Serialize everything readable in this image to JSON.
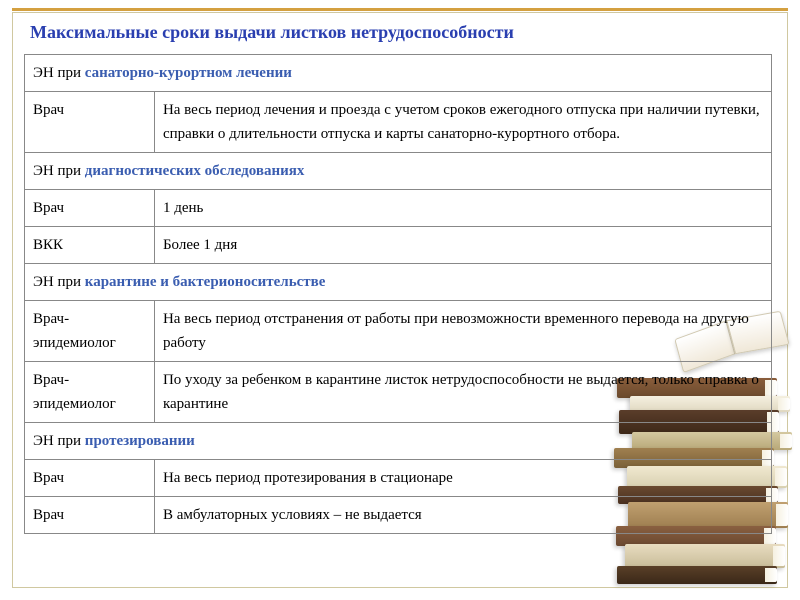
{
  "title": "Максимальные сроки выдачи листков нетрудоспособности",
  "sections": [
    {
      "header_prefix": "ЭН при ",
      "header_highlight": "санаторно-курортном лечении",
      "rows": [
        {
          "col1": "Врач",
          "col2": "На весь период лечения и проезда с учетом сроков ежегодного отпуска при наличии путевки, справки о длительности отпуска и карты санаторно-курортного отбора."
        }
      ]
    },
    {
      "header_prefix": "ЭН при ",
      "header_highlight": "диагностических обследованиях",
      "rows": [
        {
          "col1": "Врач",
          "col2": "1 день"
        },
        {
          "col1": "ВКК",
          "col2": "Более 1 дня"
        }
      ]
    },
    {
      "header_prefix": "ЭН при ",
      "header_highlight": "карантине и бактерионосительстве",
      "rows": [
        {
          "col1": "Врач-эпидемиолог",
          "col2": "На весь период отстранения от работы при невозможности временного перевода на другую работу"
        },
        {
          "col1": "Врач-эпидемиолог",
          "col2": "По уходу за ребенком в карантине листок нетрудоспособности не выдается, только справка о карантине"
        }
      ]
    },
    {
      "header_prefix": "ЭН при ",
      "header_highlight": "протезировании",
      "rows": [
        {
          "col1": "Врач",
          "col2": "На весь период протезирования в стационаре"
        },
        {
          "col1": "Врач",
          "col2": "В амбулаторных условиях – не выдается"
        }
      ]
    }
  ],
  "styling": {
    "title_color": "#2a3fb0",
    "title_fontsize": 18,
    "highlight_color": "#3a5db0",
    "border_color": "#888888",
    "frame_border_color": "#d0c8a0",
    "accent_bar_color": "#d4a040",
    "background": "#ffffff",
    "body_fontsize": 15,
    "font_family": "Times New Roman",
    "col1_width": 130,
    "col2_width": 618
  }
}
